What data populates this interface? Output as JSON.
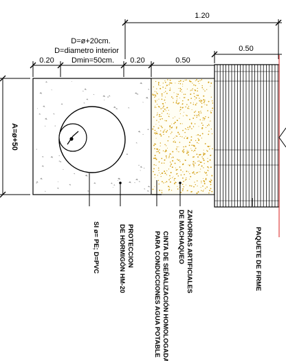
{
  "dimensions": {
    "total_width": "1.20",
    "right_block": "0.50",
    "left_margin": "0.20",
    "middle_margin": "0.20",
    "fill_width": "0.50",
    "height": "A=ø+50"
  },
  "pipe_note": {
    "line1": "D=ø+20cm.",
    "line2": "D=diametro interior",
    "line3": "Dmin=50cm."
  },
  "labels": {
    "pipe": "SI ø= PE; D=PVC",
    "protection_line1": "PROTECCION",
    "protection_line2": "DE HORMIGÓN HM-20",
    "tape_line1": "CINTA DE SEÑALIZACIÓN HOMOLOGADA",
    "tape_line2": "PARA CONDUCCIONES AGUA POTABLE",
    "fill_line1": "ZAHORRAS ARTIFICIALES",
    "fill_line2": "DE MACHAQUEO",
    "pavement": "PAQUETE DE FIRME"
  },
  "colors": {
    "line": "#000000",
    "concrete_speck": "#9a9a9a",
    "gravel": "#d4a017",
    "edge_red": "#e04040"
  }
}
